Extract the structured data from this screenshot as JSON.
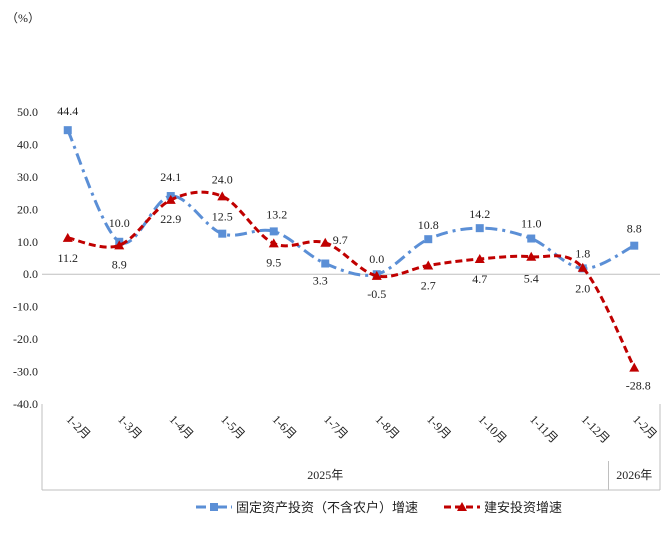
{
  "chart_data": {
    "type": "line",
    "y_unit": "（%）",
    "ylim": [
      -40,
      50
    ],
    "y_ticks": [
      "50.0",
      "40.0",
      "30.0",
      "20.0",
      "10.0",
      "0.0",
      "-10.0",
      "-20.0",
      "-30.0",
      "-40.0"
    ],
    "y_tick_values": [
      50,
      40,
      30,
      20,
      10,
      0,
      -10,
      -20,
      -30,
      -40
    ],
    "categories": [
      "1-2月",
      "1-3月",
      "1-4月",
      "1-5月",
      "1-6月",
      "1-7月",
      "1-8月",
      "1-9月",
      "1-10月",
      "1-11月",
      "1-12月",
      "1-2月"
    ],
    "groups": [
      {
        "label": "2025年",
        "from": 0,
        "to": 10
      },
      {
        "label": "2026年",
        "from": 11,
        "to": 11
      }
    ],
    "series": [
      {
        "name": "固定资产投资（不含农户）增速",
        "color": "#5b8fd6",
        "marker": "square",
        "dash": "dashdot",
        "values": [
          44.4,
          10.0,
          24.1,
          12.5,
          13.2,
          3.3,
          0.0,
          10.8,
          14.2,
          11.0,
          1.8,
          8.8
        ],
        "labels": [
          "44.4",
          "10.0",
          "24.1",
          "12.5",
          "13.2",
          "3.3",
          "0.0",
          "10.8",
          "14.2",
          "11.0",
          "1.8",
          "8.8"
        ]
      },
      {
        "name": "建安投资增速",
        "color": "#c00000",
        "marker": "triangle",
        "dash": "dash",
        "values": [
          11.2,
          8.9,
          22.9,
          24.0,
          9.5,
          9.7,
          -0.5,
          2.7,
          4.7,
          5.4,
          2.0,
          -28.8
        ],
        "labels": [
          "11.2",
          "8.9",
          "22.9",
          "24.0",
          "9.5",
          "9.7",
          "-0.5",
          "2.7",
          "4.7",
          "5.4",
          "2.0",
          "-28.8"
        ]
      }
    ]
  }
}
